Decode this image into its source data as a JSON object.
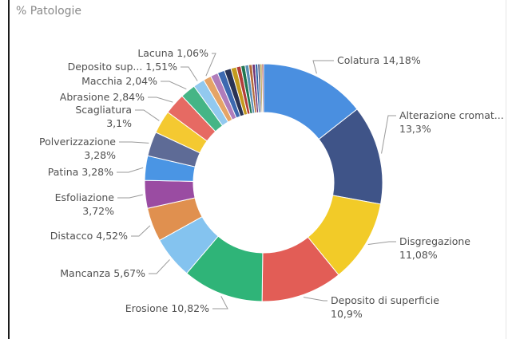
{
  "visual_title": "% Patologie",
  "chart_data": {
    "type": "pie",
    "donut": true,
    "title": "% Patologie",
    "legend": "none",
    "slices": [
      {
        "label": "Colatura",
        "display": "Colatura 14,18%",
        "value": 14.18,
        "color": "#4a8fe0"
      },
      {
        "label": "Alterazione cromatica",
        "display": "Alterazione cromat... 13,3%",
        "value": 13.3,
        "color": "#3f5488"
      },
      {
        "label": "Disgregazione",
        "display": "Disgregazione 11,08%",
        "value": 11.08,
        "color": "#f2cb28"
      },
      {
        "label": "Deposito di superficie",
        "display": "Deposito di superficie 10,9%",
        "value": 10.9,
        "color": "#e25d56"
      },
      {
        "label": "Erosione",
        "display": "Erosione 10,82%",
        "value": 10.82,
        "color": "#2fb478"
      },
      {
        "label": "Mancanza",
        "display": "Mancanza 5,67%",
        "value": 5.67,
        "color": "#84c3ef"
      },
      {
        "label": "Distacco",
        "display": "Distacco 4,52%",
        "value": 4.52,
        "color": "#e0904f"
      },
      {
        "label": "Esfoliazione",
        "display": "Esfoliazione 3,72%",
        "value": 3.72,
        "color": "#9a4ca2"
      },
      {
        "label": "Patina",
        "display": "Patina 3,28%",
        "value": 3.28,
        "color": "#4a95e4"
      },
      {
        "label": "Polverizzazione",
        "display": "Polverizzazione 3,28%",
        "value": 3.28,
        "color": "#5e6b96"
      },
      {
        "label": "Scagliatura",
        "display": "Scagliatura 3,1%",
        "value": 3.1,
        "color": "#f4c931"
      },
      {
        "label": "Abrasione",
        "display": "Abrasione 2,84%",
        "value": 2.84,
        "color": "#e66a63"
      },
      {
        "label": "Macchia",
        "display": "Macchia 2,04%",
        "value": 2.04,
        "color": "#45b586"
      },
      {
        "label": "Deposito superficiale",
        "display": "Deposito sup... 1,51%",
        "value": 1.51,
        "color": "#92c9ef"
      },
      {
        "label": "Lacuna",
        "display": "Lacuna 1,06%",
        "value": 1.06,
        "color": "#e5a467"
      },
      {
        "value": 1.0,
        "color": "#b07dbb"
      },
      {
        "value": 0.95,
        "color": "#3d69b0"
      },
      {
        "value": 0.9,
        "color": "#2a3354"
      },
      {
        "value": 0.75,
        "color": "#c39a1e"
      },
      {
        "value": 0.6,
        "color": "#b23d3a"
      },
      {
        "value": 0.55,
        "color": "#227650"
      },
      {
        "value": 0.5,
        "color": "#5a8fb6"
      },
      {
        "value": 0.45,
        "color": "#b46b3a"
      },
      {
        "value": 0.4,
        "color": "#6d3275"
      },
      {
        "value": 0.35,
        "color": "#2f64a8"
      },
      {
        "value": 0.3,
        "color": "#4a5272"
      },
      {
        "value": 0.25,
        "color": "#a88a23"
      },
      {
        "value": 0.22,
        "color": "#a8433e"
      }
    ]
  }
}
